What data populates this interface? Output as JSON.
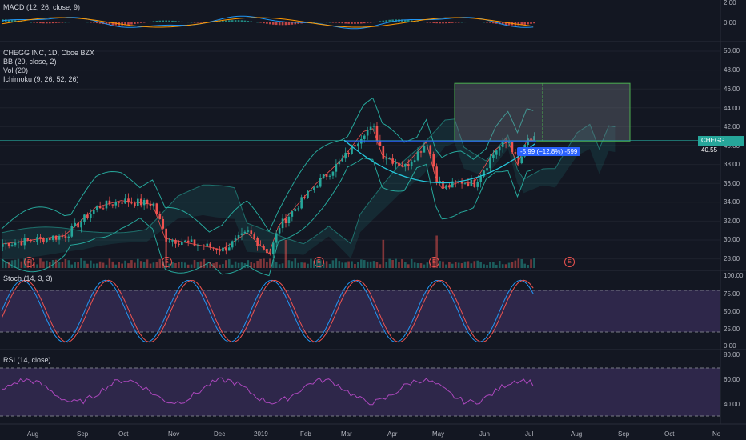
{
  "colors": {
    "bg": "#131722",
    "up": "#26a69a",
    "down": "#ef5350",
    "grid": "#1e222d",
    "stoch": "#7e57c2",
    "rsi": "#ab47bc"
  },
  "panes": {
    "macd": {
      "label": "MACD (12, 26, close, 9)",
      "yticks": [
        "2.00",
        "0.00"
      ]
    },
    "main": {
      "labels": [
        "CHEGG INC, 1D, Cboe BZX",
        "BB (20, close, 2)",
        "Vol (20)",
        "Ichimoku (9, 26, 52, 26)"
      ],
      "yticks": [
        "50.00",
        "48.00",
        "46.00",
        "44.00",
        "42.00",
        "40.00",
        "38.00",
        "36.00",
        "34.00",
        "32.00",
        "30.00",
        "28.00"
      ]
    },
    "stoch": {
      "label": "Stoch (14, 3, 3)",
      "yticks": [
        "100.00",
        "75.00",
        "50.00",
        "25.00",
        "0.00"
      ]
    },
    "rsi": {
      "label": "RSI (14, close)",
      "yticks": [
        "80.00",
        "60.00",
        "40.00"
      ]
    }
  },
  "price_badge": {
    "symbol": "CHEGG",
    "price": "40.55"
  },
  "measure_label": "-5.99 (−12.8%) -599",
  "earnings_marker": "E",
  "xaxis": [
    "Aug",
    "Sep",
    "Oct",
    "Nov",
    "Dec",
    "2019",
    "Feb",
    "Mar",
    "Apr",
    "May",
    "Jun",
    "Jul",
    "Aug",
    "Sep",
    "Oct",
    "No"
  ]
}
